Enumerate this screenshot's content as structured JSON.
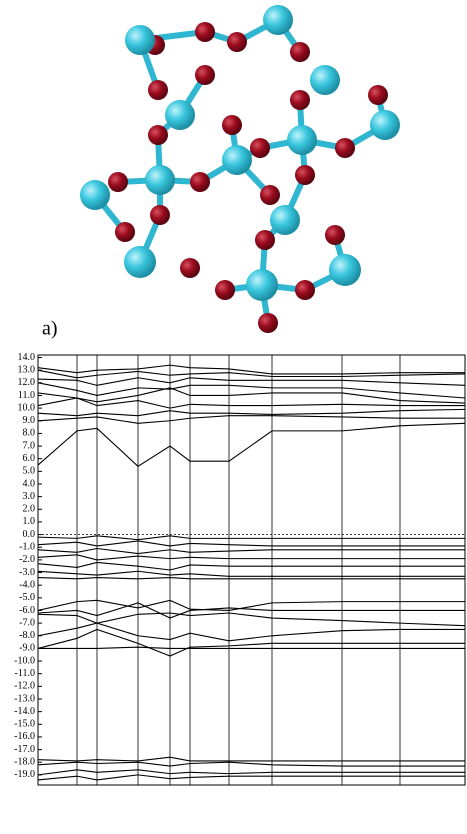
{
  "panel_label": "a)",
  "chart_data": {
    "type": "band-structure",
    "color": "#000000",
    "x": [
      0,
      39,
      59,
      100,
      132,
      152,
      191,
      234,
      304,
      362,
      427
    ],
    "xlim": [
      0,
      427
    ],
    "ylim": [
      -19.8,
      14.2
    ],
    "yticks": [
      {
        "value": 14,
        "label": "14.0"
      },
      {
        "value": 13,
        "label": "13.0"
      },
      {
        "value": 12,
        "label": "12.0"
      },
      {
        "value": 11,
        "label": "11.0"
      },
      {
        "value": 10,
        "label": "10.0"
      },
      {
        "value": 9,
        "label": "9.0"
      },
      {
        "value": 8,
        "label": "8.0"
      },
      {
        "value": 7,
        "label": "7.0"
      },
      {
        "value": 6,
        "label": "6.0"
      },
      {
        "value": 5,
        "label": "5.0"
      },
      {
        "value": 4,
        "label": "4.0"
      },
      {
        "value": 3,
        "label": "3.0"
      },
      {
        "value": 2,
        "label": "2.0"
      },
      {
        "value": 1,
        "label": "1.0"
      },
      {
        "value": 0,
        "label": "0.0"
      },
      {
        "value": -1,
        "label": "-1.0"
      },
      {
        "value": -2,
        "label": "-2.0"
      },
      {
        "value": -3,
        "label": "-3.0"
      },
      {
        "value": -4,
        "label": "-4.0"
      },
      {
        "value": -5,
        "label": "-5.0"
      },
      {
        "value": -6,
        "label": "-6.0"
      },
      {
        "value": -7,
        "label": "-7.0"
      },
      {
        "value": -8,
        "label": "-8.0"
      },
      {
        "value": -9,
        "label": "-9.0"
      },
      {
        "value": -10,
        "label": "-10.0"
      },
      {
        "value": -11,
        "label": "-11.0"
      },
      {
        "value": -12,
        "label": "-12.0"
      },
      {
        "value": -13,
        "label": "-13.0"
      },
      {
        "value": -14,
        "label": "-14.0"
      },
      {
        "value": -15,
        "label": "-15.0"
      },
      {
        "value": -16,
        "label": "-16.0"
      },
      {
        "value": -17,
        "label": "-17.0"
      },
      {
        "value": -18,
        "label": "-18.0"
      },
      {
        "value": -19,
        "label": "-19.0"
      }
    ],
    "fermi_level": 0,
    "series": [
      {
        "values": [
          5.5,
          8.2,
          8.4,
          5.4,
          7.0,
          5.8,
          5.8,
          8.2,
          8.2,
          8.6,
          8.8
        ]
      },
      {
        "values": [
          9.0,
          9.2,
          9.3,
          8.8,
          9.0,
          9.2,
          9.4,
          9.4,
          9.3,
          9.2,
          9.2
        ]
      },
      {
        "values": [
          9.6,
          9.4,
          9.6,
          9.4,
          9.8,
          9.6,
          9.6,
          9.5,
          9.6,
          9.8,
          9.9
        ]
      },
      {
        "values": [
          10.2,
          10.8,
          10.2,
          10.6,
          10.0,
          10.3,
          10.2,
          10.2,
          10.3,
          10.2,
          10.2
        ]
      },
      {
        "values": [
          11.2,
          10.8,
          10.5,
          11.0,
          11.6,
          11.0,
          11.0,
          11.2,
          11.2,
          10.6,
          10.4
        ]
      },
      {
        "values": [
          12.0,
          11.4,
          11.0,
          11.6,
          11.5,
          11.8,
          11.8,
          11.6,
          11.6,
          11.2,
          10.8
        ]
      },
      {
        "values": [
          12.3,
          12.2,
          11.8,
          12.4,
          12.0,
          12.4,
          12.2,
          12.2,
          12.2,
          12.0,
          11.8
        ]
      },
      {
        "values": [
          13.0,
          12.4,
          12.6,
          12.9,
          12.6,
          12.7,
          12.8,
          12.5,
          12.5,
          12.6,
          12.7
        ]
      },
      {
        "values": [
          13.2,
          12.8,
          13.0,
          13.1,
          13.4,
          13.2,
          13.1,
          12.7,
          12.7,
          12.8,
          12.8
        ]
      },
      {
        "values": [
          -0.2,
          -0.3,
          -0.1,
          -0.4,
          -0.1,
          -0.3,
          -0.3,
          -0.3,
          -0.3,
          -0.3,
          -0.3
        ]
      },
      {
        "values": [
          -0.8,
          -0.6,
          -0.9,
          -0.5,
          -0.9,
          -0.7,
          -0.8,
          -0.9,
          -0.9,
          -0.9,
          -0.9
        ]
      },
      {
        "values": [
          -1.2,
          -1.4,
          -1.1,
          -1.5,
          -1.2,
          -1.4,
          -1.3,
          -1.2,
          -1.2,
          -1.2,
          -1.2
        ]
      },
      {
        "values": [
          -1.8,
          -1.6,
          -2.0,
          -1.7,
          -1.9,
          -1.8,
          -1.9,
          -1.9,
          -1.9,
          -1.9,
          -1.9
        ]
      },
      {
        "values": [
          -2.3,
          -2.6,
          -2.2,
          -2.5,
          -2.8,
          -2.4,
          -2.5,
          -2.5,
          -2.5,
          -2.5,
          -2.5
        ]
      },
      {
        "values": [
          -2.9,
          -3.1,
          -3.2,
          -2.9,
          -3.2,
          -3.1,
          -3.3,
          -3.3,
          -3.3,
          -3.3,
          -3.3
        ]
      },
      {
        "values": [
          -3.4,
          -3.5,
          -3.4,
          -3.5,
          -3.4,
          -3.5,
          -3.5,
          -3.5,
          -3.5,
          -3.5,
          -3.5
        ]
      },
      {
        "values": [
          -6.0,
          -5.3,
          -5.2,
          -5.8,
          -5.2,
          -5.9,
          -6.0,
          -5.4,
          -5.3,
          -5.3,
          -5.3
        ]
      },
      {
        "values": [
          -6.2,
          -6.0,
          -6.4,
          -5.4,
          -6.6,
          -6.0,
          -5.8,
          -6.0,
          -6.0,
          -6.0,
          -6.0
        ]
      },
      {
        "values": [
          -6.3,
          -6.4,
          -7.0,
          -6.3,
          -6.2,
          -6.4,
          -6.2,
          -6.6,
          -6.8,
          -7.0,
          -7.2
        ]
      },
      {
        "values": [
          -8.0,
          -7.4,
          -7.0,
          -8.0,
          -8.3,
          -7.8,
          -8.4,
          -8.0,
          -7.6,
          -7.5,
          -7.5
        ]
      },
      {
        "values": [
          -9.0,
          -8.2,
          -7.5,
          -8.6,
          -9.6,
          -8.9,
          -8.8,
          -8.6,
          -8.6,
          -8.6,
          -8.6
        ]
      },
      {
        "values": [
          -9.0,
          -9.0,
          -9.0,
          -8.9,
          -9.0,
          -9.0,
          -9.0,
          -9.0,
          -9.0,
          -9.0,
          -9.0
        ]
      },
      {
        "values": [
          -17.8,
          -17.9,
          -17.8,
          -17.9,
          -17.6,
          -17.9,
          -17.9,
          -17.9,
          -17.9,
          -17.9,
          -17.9
        ]
      },
      {
        "values": [
          -18.2,
          -18.0,
          -18.1,
          -18.0,
          -18.3,
          -18.1,
          -18.0,
          -18.2,
          -18.3,
          -18.3,
          -18.3
        ]
      },
      {
        "values": [
          -19.0,
          -18.6,
          -18.8,
          -18.6,
          -18.9,
          -18.8,
          -18.9,
          -18.8,
          -18.8,
          -18.8,
          -18.8
        ]
      },
      {
        "values": [
          -19.4,
          -19.1,
          -19.4,
          -19.0,
          -19.3,
          -19.2,
          -19.1,
          -19.1,
          -19.1,
          -19.1,
          -19.1
        ]
      }
    ]
  }
}
